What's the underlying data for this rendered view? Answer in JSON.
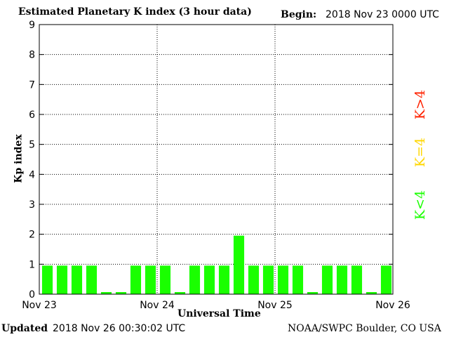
{
  "chart_data": {
    "type": "bar",
    "title": "Estimated Planetary K index (3 hour data)",
    "begin_label": "Begin:",
    "begin_value": "2018 Nov 23 0000 UTC",
    "xlabel": "Universal Time",
    "ylabel": "Kp index",
    "ylim": [
      0,
      9
    ],
    "yticks": [
      "0",
      "1",
      "2",
      "3",
      "4",
      "5",
      "6",
      "7",
      "8",
      "9"
    ],
    "xticks": [
      "Nov 23",
      "Nov 24",
      "Nov 25",
      "Nov 26"
    ],
    "grid": true,
    "bar_color": "#1aff00",
    "values": [
      1,
      1,
      1,
      1,
      0,
      0,
      1,
      1,
      1,
      0,
      1,
      1,
      1,
      2,
      1,
      1,
      1,
      1,
      0,
      1,
      1,
      1,
      0,
      1
    ],
    "legend": [
      {
        "label": "K>4",
        "color": "#ff2200"
      },
      {
        "label": "K=4",
        "color": "#ffd700"
      },
      {
        "label": "K<4",
        "color": "#1aff00"
      }
    ]
  },
  "footer": {
    "updated_label": "Updated",
    "updated_value": "2018 Nov 26 00:30:02 UTC",
    "source": "NOAA/SWPC Boulder, CO USA"
  }
}
